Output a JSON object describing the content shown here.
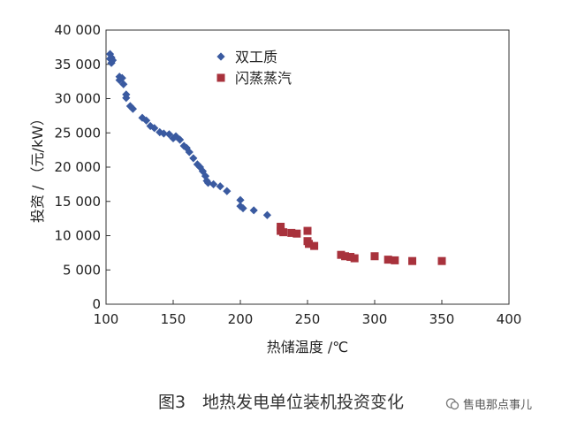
{
  "chart_data": {
    "type": "scatter",
    "xlabel": "热储温度 /℃",
    "ylabel": "投资 / （元/kW）",
    "xlim": [
      100,
      400
    ],
    "ylim": [
      0,
      40000
    ],
    "x_ticks": [
      "100",
      "150",
      "200",
      "250",
      "300",
      "350",
      "400"
    ],
    "y_ticks": [
      "0",
      "5 000",
      "10 000",
      "15 000",
      "20 000",
      "25 000",
      "30 000",
      "35 000",
      "40 000"
    ],
    "legend_position": "top-center",
    "grid": false,
    "series": [
      {
        "name": "双工质",
        "color": "#3a5aa0",
        "marker": "diamond",
        "points": [
          [
            103,
            36500
          ],
          [
            103,
            35800
          ],
          [
            104,
            35200
          ],
          [
            104,
            36000
          ],
          [
            105,
            35600
          ],
          [
            110,
            33200
          ],
          [
            110,
            32700
          ],
          [
            112,
            33000
          ],
          [
            113,
            32100
          ],
          [
            115,
            30600
          ],
          [
            115,
            30100
          ],
          [
            118,
            28900
          ],
          [
            120,
            28500
          ],
          [
            127,
            27200
          ],
          [
            130,
            26800
          ],
          [
            133,
            26000
          ],
          [
            136,
            25700
          ],
          [
            140,
            25100
          ],
          [
            143,
            24900
          ],
          [
            147,
            24800
          ],
          [
            150,
            24200
          ],
          [
            152,
            24500
          ],
          [
            155,
            24000
          ],
          [
            158,
            23100
          ],
          [
            160,
            22800
          ],
          [
            162,
            22200
          ],
          [
            165,
            21300
          ],
          [
            168,
            20400
          ],
          [
            170,
            20000
          ],
          [
            172,
            19400
          ],
          [
            174,
            18700
          ],
          [
            175,
            18000
          ],
          [
            176,
            17700
          ],
          [
            180,
            17500
          ],
          [
            185,
            17200
          ],
          [
            190,
            16500
          ],
          [
            200,
            15200
          ],
          [
            200,
            14300
          ],
          [
            202,
            14000
          ],
          [
            210,
            13700
          ],
          [
            220,
            13000
          ]
        ]
      },
      {
        "name": "闪蒸蒸汽",
        "color": "#a8323c",
        "marker": "square",
        "points": [
          [
            230,
            11300
          ],
          [
            230,
            10700
          ],
          [
            232,
            10500
          ],
          [
            238,
            10400
          ],
          [
            242,
            10300
          ],
          [
            250,
            10700
          ],
          [
            250,
            9200
          ],
          [
            251,
            8800
          ],
          [
            255,
            8500
          ],
          [
            275,
            7200
          ],
          [
            278,
            7000
          ],
          [
            282,
            6900
          ],
          [
            285,
            6700
          ],
          [
            300,
            7000
          ],
          [
            310,
            6500
          ],
          [
            315,
            6400
          ],
          [
            328,
            6300
          ],
          [
            350,
            6300
          ]
        ]
      }
    ]
  },
  "caption": "图3　地热发电单位装机投资变化",
  "watermark": "售电那点事儿"
}
